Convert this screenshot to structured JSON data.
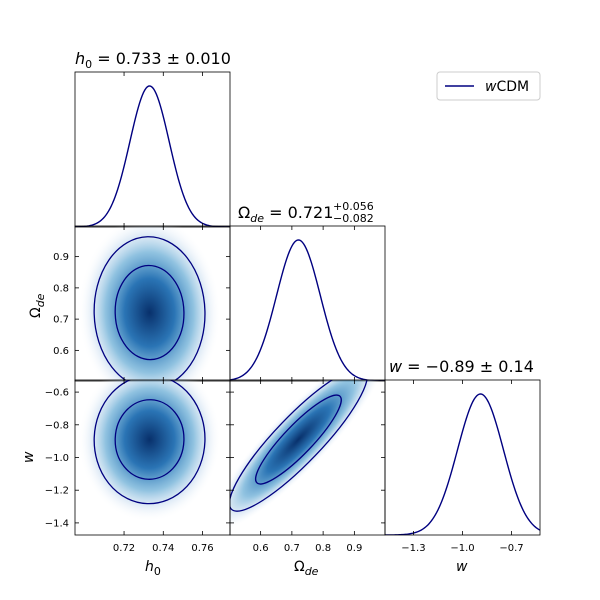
{
  "chart_data": {
    "type": "corner",
    "parameters": [
      {
        "key": "h0",
        "label": "h",
        "label_sub": "0",
        "range": [
          0.695,
          0.774
        ],
        "ticks": [
          0.72,
          0.74,
          0.76
        ],
        "tick_labels": [
          "0.72",
          "0.74",
          "0.76"
        ],
        "mean": 0.733,
        "sigma": 0.01,
        "title": {
          "sym": "h",
          "sub": "0",
          "rest": " = 0.733 ± 0.010"
        }
      },
      {
        "key": "ode",
        "label": "Ω",
        "label_sub": "de",
        "range": [
          0.502,
          0.998
        ],
        "ticks": [
          0.6,
          0.7,
          0.8,
          0.9
        ],
        "tick_labels": [
          "0.6",
          "0.7",
          "0.8",
          "0.9"
        ],
        "mean": 0.721,
        "sigma": 0.07,
        "title": {
          "sym": "Ω",
          "sub": "de",
          "rest": " = 0.721",
          "sup_err": "+0.056",
          "sub_err": "−0.082"
        }
      },
      {
        "key": "w",
        "label": "w",
        "label_sub": "",
        "range": [
          -1.474,
          -0.526
        ],
        "ticks": [
          -1.3,
          -1.0,
          -0.7
        ],
        "tick_labels": [
          "−1.3",
          "−1.0",
          "−0.7"
        ],
        "mean": -0.89,
        "sigma": 0.14,
        "title": {
          "sym": "w",
          "sub": "",
          "rest": " = −0.89 ± 0.14"
        }
      }
    ],
    "y_ticks": {
      "ode": {
        "values": [
          0.6,
          0.7,
          0.8,
          0.9
        ],
        "labels": [
          "0.6",
          "0.7",
          "0.8",
          "0.9"
        ]
      },
      "w": {
        "values": [
          -1.4,
          -1.2,
          -1.0,
          -0.8,
          -0.6
        ],
        "labels": [
          "−1.4",
          "−1.2",
          "−1.0",
          "−0.8",
          "−0.6"
        ]
      }
    },
    "pair_correlations": {
      "ode_h0": -0.1,
      "w_h0": 0.05,
      "w_ode": 0.95
    },
    "pair_covariance": {
      "ode_h0": [
        [
          0.000133,
          -4.4e-05
        ],
        [
          -4.4e-05,
          0.0098
        ]
      ],
      "w_h0": [
        [
          0.000133,
          8e-05
        ],
        [
          8e-05,
          0.0256
        ]
      ],
      "w_ode": [
        [
          0.0085,
          0.0148
        ],
        [
          0.0148,
          0.0306
        ]
      ]
    },
    "contour_levels": [
      "68%",
      "95%"
    ],
    "series": [
      {
        "name": "wCDM",
        "name_style": "w",
        "name_rest": "CDM",
        "color": "#000080"
      }
    ],
    "legend": "top-right",
    "fill_colormap": "Blues",
    "line_color": "#000080"
  }
}
